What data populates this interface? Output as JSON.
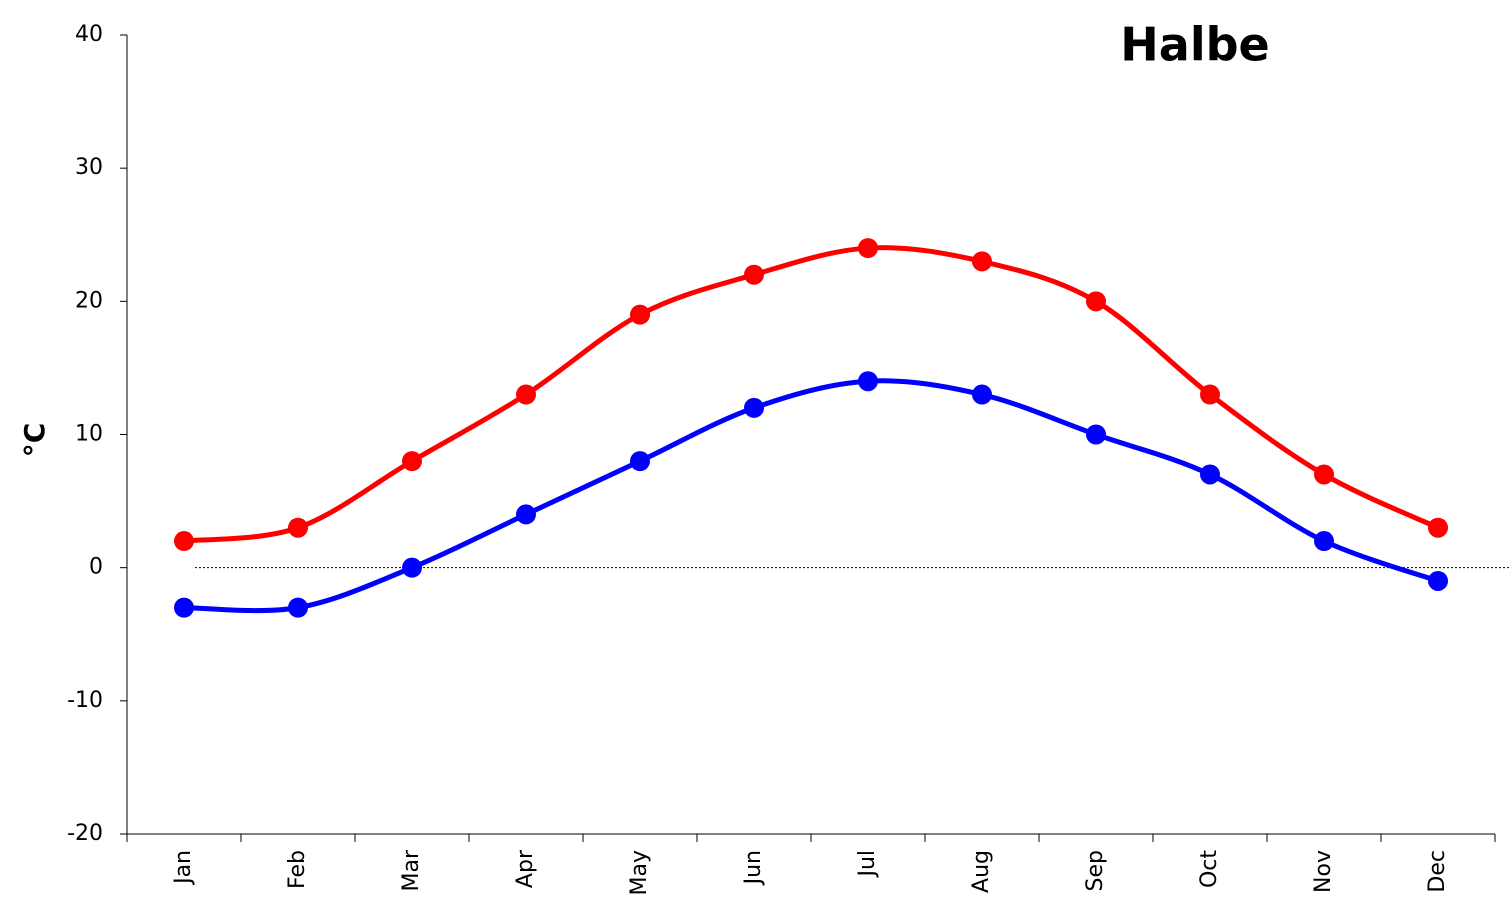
{
  "chart_data": {
    "type": "line",
    "title": "Halbe",
    "ylabel": "°C",
    "categories": [
      "Jan",
      "Feb",
      "Mar",
      "Apr",
      "May",
      "Jun",
      "Jul",
      "Aug",
      "Sep",
      "Oct",
      "Nov",
      "Dec"
    ],
    "series": [
      {
        "color": "#ff0000",
        "values": [
          2,
          3,
          8,
          13,
          19,
          22,
          24,
          23,
          20,
          13,
          7,
          3
        ]
      },
      {
        "color": "#0000ff",
        "values": [
          -3,
          -3,
          0,
          4,
          8,
          12,
          14,
          13,
          10,
          7,
          2,
          -1
        ]
      }
    ],
    "ylim": [
      -20,
      40
    ],
    "yticks": [
      -20,
      -10,
      0,
      10,
      20,
      30,
      40
    ],
    "smooth": true
  }
}
